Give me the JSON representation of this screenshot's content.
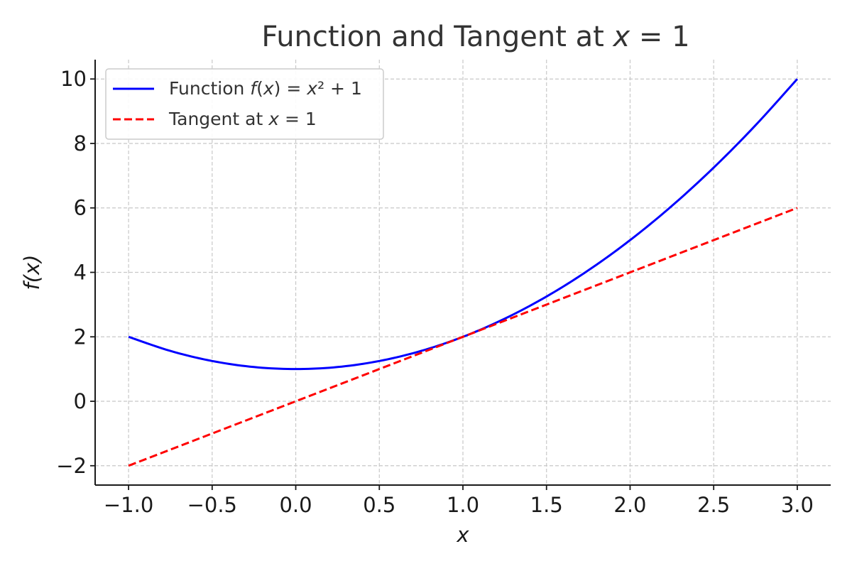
{
  "chart_data": {
    "type": "line",
    "title": "Function and Tangent at x = 1",
    "xlabel": "x",
    "ylabel": "f(x)",
    "xlim": [
      -1.2,
      3.2
    ],
    "ylim": [
      -2.6,
      10.6
    ],
    "grid": true,
    "grid_style": "dashed",
    "legend_position": "top-left",
    "x_ticks": [
      -1.0,
      -0.5,
      0.0,
      0.5,
      1.0,
      1.5,
      2.0,
      2.5,
      3.0
    ],
    "x_tick_labels": [
      "−1.0",
      "−0.5",
      "0.0",
      "0.5",
      "1.0",
      "1.5",
      "2.0",
      "2.5",
      "3.0"
    ],
    "y_ticks": [
      -2,
      0,
      2,
      4,
      6,
      8,
      10
    ],
    "y_tick_labels": [
      "−2",
      "0",
      "2",
      "4",
      "6",
      "8",
      "10"
    ],
    "series": [
      {
        "name": "Function f(x) = x² + 1",
        "color": "#0000ff",
        "style": "solid",
        "x": [
          -1.0,
          -0.75,
          -0.5,
          -0.25,
          0.0,
          0.25,
          0.5,
          0.75,
          1.0,
          1.25,
          1.5,
          1.75,
          2.0,
          2.25,
          2.5,
          2.75,
          3.0
        ],
        "y": [
          2.0,
          1.5625,
          1.25,
          1.0625,
          1.0,
          1.0625,
          1.25,
          1.5625,
          2.0,
          2.5625,
          3.25,
          4.0625,
          5.0,
          6.0625,
          7.25,
          8.5625,
          10.0
        ]
      },
      {
        "name": "Tangent at x = 1",
        "color": "#ff0000",
        "style": "dashed",
        "x": [
          -1.0,
          3.0
        ],
        "y": [
          -2.0,
          6.0
        ]
      }
    ]
  }
}
